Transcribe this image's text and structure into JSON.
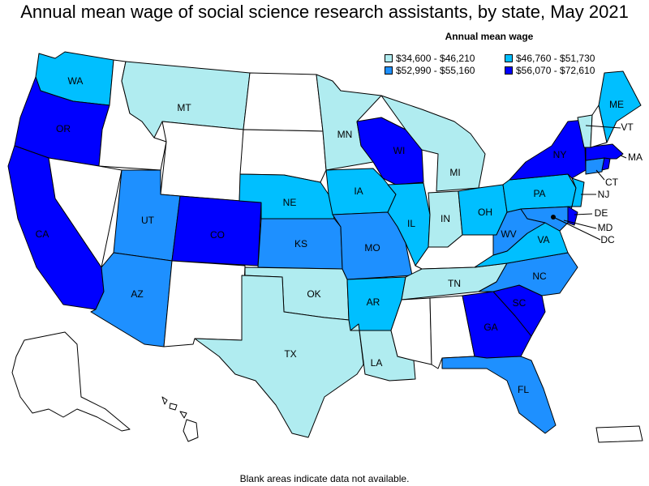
{
  "title": "Annual mean wage of social science research assistants, by state, May 2021",
  "legend": {
    "title": "Annual mean wage",
    "items": [
      {
        "range": "$34,600 - $46,210",
        "color": "#b0ecf0"
      },
      {
        "range": "$46,760 - $51,730",
        "color": "#00bfff"
      },
      {
        "range": "$52,990 - $55,160",
        "color": "#1e90ff"
      },
      {
        "range": "$56,070 - $72,610",
        "color": "#0000ff"
      }
    ]
  },
  "footnote": "Blank areas indicate data not available.",
  "colors": {
    "no_data": "#ffffff"
  },
  "states": {
    "WA": {
      "label": "WA",
      "bin": 1
    },
    "OR": {
      "label": "OR",
      "bin": 3
    },
    "CA": {
      "label": "CA",
      "bin": 3
    },
    "MT": {
      "label": "MT",
      "bin": 0
    },
    "UT": {
      "label": "UT",
      "bin": 2
    },
    "AZ": {
      "label": "AZ",
      "bin": 2
    },
    "CO": {
      "label": "CO",
      "bin": 3
    },
    "MN": {
      "label": "MN",
      "bin": 0
    },
    "WI": {
      "label": "WI",
      "bin": 3
    },
    "MI": {
      "label": "MI",
      "bin": 0
    },
    "NE": {
      "label": "NE",
      "bin": 1
    },
    "KS": {
      "label": "KS",
      "bin": 2
    },
    "OK": {
      "label": "OK",
      "bin": 0
    },
    "TX": {
      "label": "TX",
      "bin": 0
    },
    "IA": {
      "label": "IA",
      "bin": 1
    },
    "MO": {
      "label": "MO",
      "bin": 2
    },
    "AR": {
      "label": "AR",
      "bin": 1
    },
    "LA": {
      "label": "LA",
      "bin": 0
    },
    "IL": {
      "label": "IL",
      "bin": 1
    },
    "IN": {
      "label": "IN",
      "bin": 0
    },
    "OH": {
      "label": "OH",
      "bin": 1
    },
    "TN": {
      "label": "TN",
      "bin": 0
    },
    "GA": {
      "label": "GA",
      "bin": 3
    },
    "SC": {
      "label": "SC",
      "bin": 3
    },
    "NC": {
      "label": "NC",
      "bin": 2
    },
    "FL": {
      "label": "FL",
      "bin": 2
    },
    "VA": {
      "label": "VA",
      "bin": 1
    },
    "WV": {
      "label": "WV",
      "bin": 2
    },
    "PA": {
      "label": "PA",
      "bin": 1
    },
    "NY": {
      "label": "NY",
      "bin": 3
    },
    "ME": {
      "label": "ME",
      "bin": 1
    },
    "VT": {
      "label": "VT",
      "bin": 0
    },
    "NH": {
      "label": "",
      "bin": null
    },
    "MA": {
      "label": "MA",
      "bin": 3
    },
    "CT": {
      "label": "CT",
      "bin": 2
    },
    "RI": {
      "label": "",
      "bin": 3
    },
    "NJ": {
      "label": "NJ",
      "bin": 1
    },
    "DE": {
      "label": "DE",
      "bin": 3
    },
    "MD": {
      "label": "MD",
      "bin": 2
    },
    "DC": {
      "label": "DC",
      "bin": 3
    },
    "ID": {
      "label": "",
      "bin": null
    },
    "NV": {
      "label": "",
      "bin": null
    },
    "WY": {
      "label": "",
      "bin": null
    },
    "NM": {
      "label": "",
      "bin": null
    },
    "ND": {
      "label": "",
      "bin": null
    },
    "SD": {
      "label": "",
      "bin": null
    },
    "KY": {
      "label": "",
      "bin": null
    },
    "MS": {
      "label": "",
      "bin": null
    },
    "AL": {
      "label": "",
      "bin": null
    },
    "AK": {
      "label": "",
      "bin": null
    },
    "HI": {
      "label": "",
      "bin": null
    },
    "PR": {
      "label": "",
      "bin": null
    }
  }
}
